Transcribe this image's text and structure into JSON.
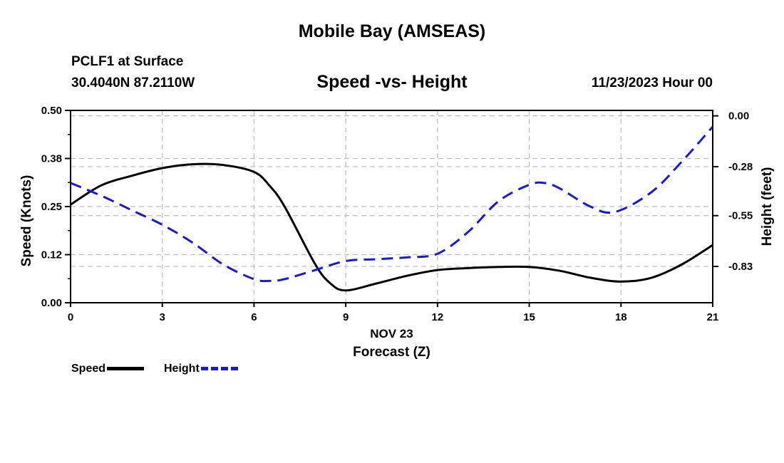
{
  "header": {
    "title": "Mobile Bay (AMSEAS)",
    "station": "PCLF1 at Surface",
    "coords": "30.4040N  87.2110W",
    "chart_title": "Speed -vs- Height",
    "datetime": "11/23/2023 Hour 00"
  },
  "footer": {
    "title": "Mobile Bay (AMSEAS)"
  },
  "legend": {
    "speed_label": "Speed",
    "height_label": "Height"
  },
  "colors": {
    "speed": "#000000",
    "height": "#1a1acc",
    "grid": "#bdbdbd"
  },
  "chart_data": {
    "type": "line",
    "title": "Speed -vs- Height",
    "xlabel": "Forecast (Z)",
    "xlabel_date": "NOV 23",
    "ylabel_left": "Speed (Knots)",
    "ylabel_right": "Height (feet)",
    "xlim": [
      0,
      21
    ],
    "ylim_left": [
      0,
      0.5
    ],
    "ylim_right": [
      -1.03,
      0.03
    ],
    "x_ticks": [
      0,
      3,
      6,
      9,
      12,
      15,
      18,
      21
    ],
    "x_tick_labels": [
      "0",
      "3",
      "6",
      "9",
      "12",
      "15",
      "18",
      "21"
    ],
    "y_left_ticks": [
      0,
      0.125,
      0.25,
      0.375,
      0.5
    ],
    "y_left_tick_labels": [
      "0.00",
      "0.12",
      "0.25",
      "0.38",
      "0.50"
    ],
    "y_right_ticks": [
      0,
      -0.28,
      -0.55,
      -0.83
    ],
    "y_right_tick_labels": [
      "0.00",
      "-0.28",
      "-0.55",
      "-0.83"
    ],
    "grid": true,
    "series": [
      {
        "name": "Speed",
        "axis": "left",
        "style": "solid",
        "x": [
          0,
          1,
          2,
          3,
          4,
          5,
          6,
          6.5,
          7,
          8,
          8.5,
          9,
          10,
          11,
          12,
          13,
          14,
          15,
          16,
          17,
          18,
          19,
          20,
          21
        ],
        "y": [
          0.255,
          0.305,
          0.33,
          0.35,
          0.36,
          0.358,
          0.34,
          0.305,
          0.25,
          0.1,
          0.05,
          0.032,
          0.05,
          0.07,
          0.085,
          0.09,
          0.093,
          0.093,
          0.083,
          0.065,
          0.055,
          0.065,
          0.1,
          0.15
        ]
      },
      {
        "name": "Height",
        "axis": "right",
        "style": "dashed",
        "x": [
          0,
          1,
          2,
          3,
          4,
          5,
          6,
          6.5,
          7,
          8,
          9,
          10,
          11,
          12,
          13,
          14,
          15,
          15.5,
          16,
          17,
          17.8,
          19,
          20,
          21
        ],
        "y": [
          -0.37,
          -0.44,
          -0.52,
          -0.6,
          -0.7,
          -0.82,
          -0.9,
          -0.91,
          -0.9,
          -0.85,
          -0.8,
          -0.79,
          -0.78,
          -0.76,
          -0.64,
          -0.47,
          -0.38,
          -0.37,
          -0.4,
          -0.5,
          -0.53,
          -0.42,
          -0.25,
          -0.06
        ]
      }
    ]
  }
}
